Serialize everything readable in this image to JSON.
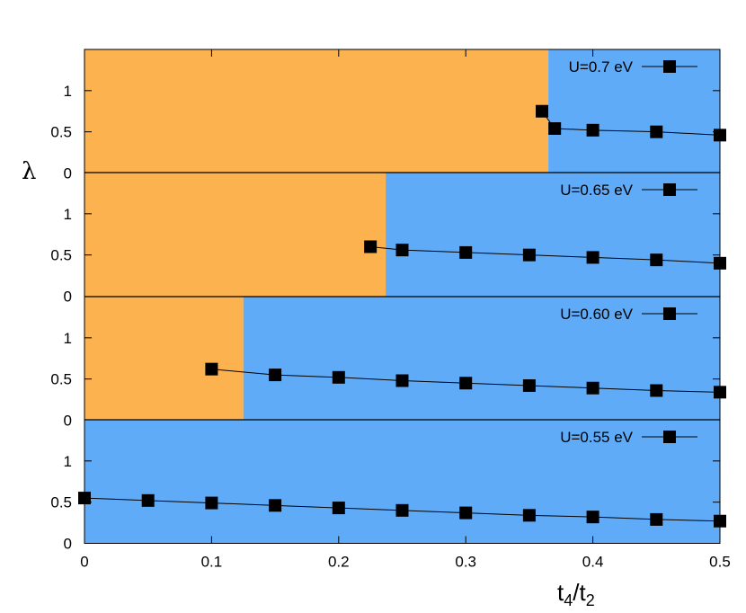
{
  "colors": {
    "phase_a": "#fcb24f",
    "phase_b": "#60abf7",
    "series": "#000000"
  },
  "axes": {
    "xlabel_main": "t",
    "xlabel_sub1": "4",
    "xlabel_slash": "/t",
    "xlabel_sub2": "2",
    "ylabel": "λ"
  },
  "chart_data": [
    {
      "type": "line",
      "marker": "square",
      "x": [
        0.36,
        0.37,
        0.4,
        0.45,
        0.5
      ],
      "series": [
        {
          "name": "U=0.7 eV",
          "values": [
            0.75,
            0.54,
            0.52,
            0.5,
            0.46
          ]
        }
      ],
      "boundary_x": 0.365,
      "xlim": [
        0,
        0.5
      ],
      "ylim": [
        0,
        1.5
      ],
      "yticks": [
        "0",
        "0.5",
        "1"
      ],
      "grid": false,
      "legend": "top-right"
    },
    {
      "type": "line",
      "marker": "square",
      "x": [
        0.225,
        0.25,
        0.3,
        0.35,
        0.4,
        0.45,
        0.5
      ],
      "series": [
        {
          "name": "U=0.65 eV",
          "values": [
            0.6,
            0.56,
            0.53,
            0.5,
            0.47,
            0.44,
            0.4
          ]
        }
      ],
      "boundary_x": 0.237,
      "xlim": [
        0,
        0.5
      ],
      "ylim": [
        0,
        1.5
      ],
      "yticks": [
        "0",
        "0.5",
        "1"
      ],
      "grid": false,
      "legend": "top-right"
    },
    {
      "type": "line",
      "marker": "square",
      "x": [
        0.1,
        0.15,
        0.2,
        0.25,
        0.3,
        0.35,
        0.4,
        0.45,
        0.5
      ],
      "series": [
        {
          "name": "U=0.60 eV",
          "values": [
            0.62,
            0.55,
            0.52,
            0.48,
            0.45,
            0.42,
            0.39,
            0.36,
            0.34
          ]
        }
      ],
      "boundary_x": 0.125,
      "xlim": [
        0,
        0.5
      ],
      "ylim": [
        0,
        1.5
      ],
      "yticks": [
        "0",
        "0.5",
        "1"
      ],
      "grid": false,
      "legend": "top-right"
    },
    {
      "type": "line",
      "marker": "square",
      "x": [
        0.0,
        0.05,
        0.1,
        0.15,
        0.2,
        0.25,
        0.3,
        0.35,
        0.4,
        0.45,
        0.5
      ],
      "series": [
        {
          "name": "U=0.55 eV",
          "values": [
            0.55,
            0.52,
            0.49,
            0.46,
            0.43,
            0.4,
            0.37,
            0.34,
            0.32,
            0.29,
            0.27
          ]
        }
      ],
      "boundary_x": 0.0,
      "xlim": [
        0,
        0.5
      ],
      "ylim": [
        0,
        1.5
      ],
      "yticks": [
        "0",
        "0.5",
        "1"
      ],
      "xticks": [
        "0",
        "0.1",
        "0.2",
        "0.3",
        "0.4",
        "0.5"
      ],
      "grid": false,
      "legend": "top-right"
    }
  ]
}
